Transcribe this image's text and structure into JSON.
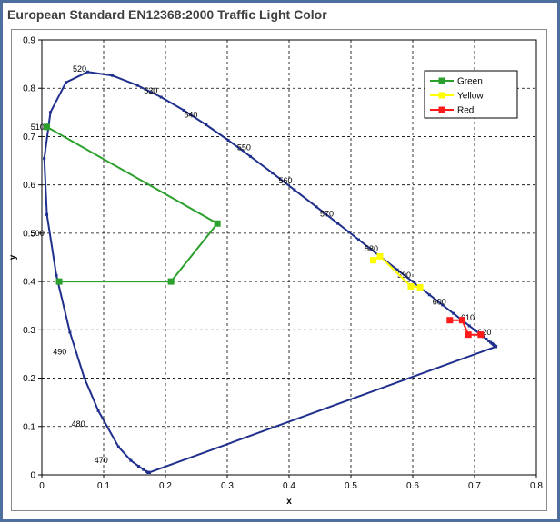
{
  "title": "European Standard EN12368:2000 Traffic Light Color",
  "colors": {
    "border": "#4e6e9e",
    "locus": "#1f2f8c",
    "green": "#2ca02c",
    "yellow": "#ffff00",
    "red": "#ff1a1a",
    "grid": "#000000"
  },
  "chart_data": {
    "type": "scatter",
    "title": "European Standard EN12368:2000 Traffic Light Color",
    "xlabel": "x",
    "ylabel": "y",
    "xlim": [
      0,
      0.8
    ],
    "ylim": [
      0,
      0.9
    ],
    "x_ticks": [
      "0",
      "0.1",
      "0.2",
      "0.3",
      "0.4",
      "0.5",
      "0.6",
      "0.7",
      "0.8"
    ],
    "y_ticks": [
      "0",
      "0.1",
      "0.2",
      "0.3",
      "0.4",
      "0.5",
      "0.6",
      "0.7",
      "0.8",
      "0.9"
    ],
    "grid": "dashed",
    "legend_position": "top-right",
    "spectral_locus": {
      "x": [
        0.1741,
        0.1738,
        0.1733,
        0.1726,
        0.1714,
        0.1689,
        0.1644,
        0.1566,
        0.144,
        0.1241,
        0.0913,
        0.0687,
        0.0454,
        0.0235,
        0.0082,
        0.0039,
        0.0139,
        0.0389,
        0.0743,
        0.1142,
        0.1547,
        0.1929,
        0.2296,
        0.2658,
        0.3016,
        0.3373,
        0.3731,
        0.4087,
        0.4441,
        0.4788,
        0.5125,
        0.5448,
        0.5752,
        0.6029,
        0.627,
        0.6482,
        0.6658,
        0.6801,
        0.6915,
        0.7006,
        0.7079,
        0.714,
        0.719,
        0.723,
        0.726,
        0.7283,
        0.73,
        0.7311,
        0.732,
        0.7327,
        0.7334,
        0.734,
        0.7344,
        0.7346,
        0.7347,
        0.1741
      ],
      "y": [
        0.005,
        0.0049,
        0.0048,
        0.0048,
        0.0051,
        0.0069,
        0.0109,
        0.0177,
        0.0297,
        0.0578,
        0.1327,
        0.2007,
        0.295,
        0.4127,
        0.5384,
        0.6548,
        0.7502,
        0.812,
        0.8338,
        0.8262,
        0.8059,
        0.7816,
        0.7543,
        0.7243,
        0.6923,
        0.6589,
        0.6245,
        0.5896,
        0.5547,
        0.5202,
        0.4866,
        0.4544,
        0.4242,
        0.3965,
        0.3725,
        0.3514,
        0.334,
        0.3197,
        0.3083,
        0.2993,
        0.292,
        0.2859,
        0.2809,
        0.277,
        0.274,
        0.2717,
        0.27,
        0.2689,
        0.268,
        0.2673,
        0.2666,
        0.266,
        0.2656,
        0.2654,
        0.2653,
        0.005
      ]
    },
    "wavelength_labels": [
      {
        "label": "470",
        "x": 0.085,
        "y": 0.03
      },
      {
        "label": "480",
        "x": 0.048,
        "y": 0.105
      },
      {
        "label": "490",
        "x": 0.018,
        "y": 0.255
      },
      {
        "label": "500",
        "x": -0.018,
        "y": 0.5
      },
      {
        "label": "510",
        "x": -0.018,
        "y": 0.72
      },
      {
        "label": "520",
        "x": 0.05,
        "y": 0.84
      },
      {
        "label": "530",
        "x": 0.165,
        "y": 0.795
      },
      {
        "label": "540",
        "x": 0.23,
        "y": 0.745
      },
      {
        "label": "550",
        "x": 0.316,
        "y": 0.677
      },
      {
        "label": "560",
        "x": 0.383,
        "y": 0.609
      },
      {
        "label": "570",
        "x": 0.45,
        "y": 0.54
      },
      {
        "label": "580",
        "x": 0.522,
        "y": 0.468
      },
      {
        "label": "590",
        "x": 0.575,
        "y": 0.413
      },
      {
        "label": "600",
        "x": 0.632,
        "y": 0.358
      },
      {
        "label": "610",
        "x": 0.678,
        "y": 0.325
      },
      {
        "label": "620",
        "x": 0.705,
        "y": 0.295
      }
    ],
    "series": [
      {
        "name": "Green",
        "color": "#2ca02c",
        "x": [
          0.008,
          0.284,
          0.209,
          0.028
        ],
        "y": [
          0.72,
          0.52,
          0.4,
          0.4
        ]
      },
      {
        "name": "Yellow",
        "color": "#ffff00",
        "x": [
          0.536,
          0.547,
          0.597,
          0.612
        ],
        "y": [
          0.444,
          0.452,
          0.39,
          0.388
        ]
      },
      {
        "name": "Red",
        "color": "#ff1a1a",
        "x": [
          0.66,
          0.68,
          0.69,
          0.71
        ],
        "y": [
          0.32,
          0.32,
          0.29,
          0.29
        ]
      }
    ]
  }
}
